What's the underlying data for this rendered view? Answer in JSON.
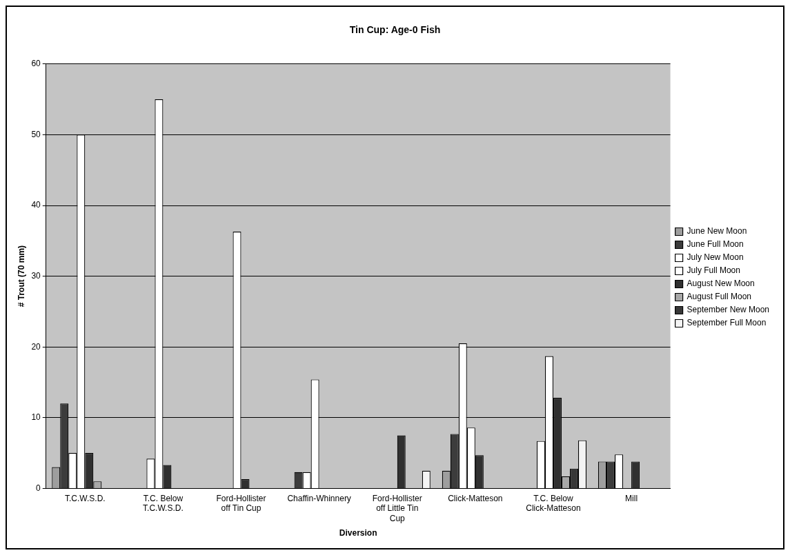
{
  "chart_data": {
    "type": "bar",
    "title": "Tin Cup: Age-0 Fish",
    "xlabel": "Diversion",
    "ylabel": "# Trout (70 mm)",
    "categories": [
      "T.C.W.S.D.",
      "T.C. Below T.C.W.S.D.",
      "Ford-Hollister off Tin Cup",
      "Chaffin-Whinnery",
      "Ford-Hollister off Little Tin Cup",
      "Click-Matteson",
      "T.C. Below Click-Matteson",
      "Mill"
    ],
    "series": [
      {
        "name": "June New Moon",
        "color": "#9e9e9e",
        "values": [
          3,
          0,
          0,
          0,
          0,
          2.5,
          0,
          3.8
        ]
      },
      {
        "name": "June Full Moon",
        "color": "#3c3c3c",
        "values": [
          12,
          0,
          0,
          2.3,
          0,
          7.7,
          0,
          3.8
        ]
      },
      {
        "name": "July New Moon",
        "color": "#ffffff",
        "values": [
          5,
          4.2,
          0,
          2.3,
          0,
          20.5,
          6.7,
          4.8
        ]
      },
      {
        "name": "July Full Moon",
        "color": "#ffffff",
        "values": [
          50,
          55,
          36.3,
          15.4,
          0,
          8.6,
          18.7,
          0
        ]
      },
      {
        "name": "August New Moon",
        "color": "#303030",
        "values": [
          5,
          3.3,
          1.3,
          0,
          7.5,
          4.7,
          12.8,
          3.8
        ]
      },
      {
        "name": "August Full Moon",
        "color": "#a8a8a8",
        "values": [
          1,
          0,
          0,
          0,
          0,
          0,
          1.7,
          0
        ]
      },
      {
        "name": "September New Moon",
        "color": "#383838",
        "values": [
          0,
          0,
          0,
          0,
          0,
          0,
          2.8,
          0
        ]
      },
      {
        "name": "September Full Moon",
        "color": "#f4f4f4",
        "values": [
          0,
          0,
          0,
          0,
          2.5,
          0,
          6.8,
          0
        ]
      }
    ],
    "ylim": [
      0,
      60
    ],
    "yticks": [
      0,
      10,
      20,
      30,
      40,
      50,
      60
    ],
    "grid": "y",
    "legend": "right"
  }
}
